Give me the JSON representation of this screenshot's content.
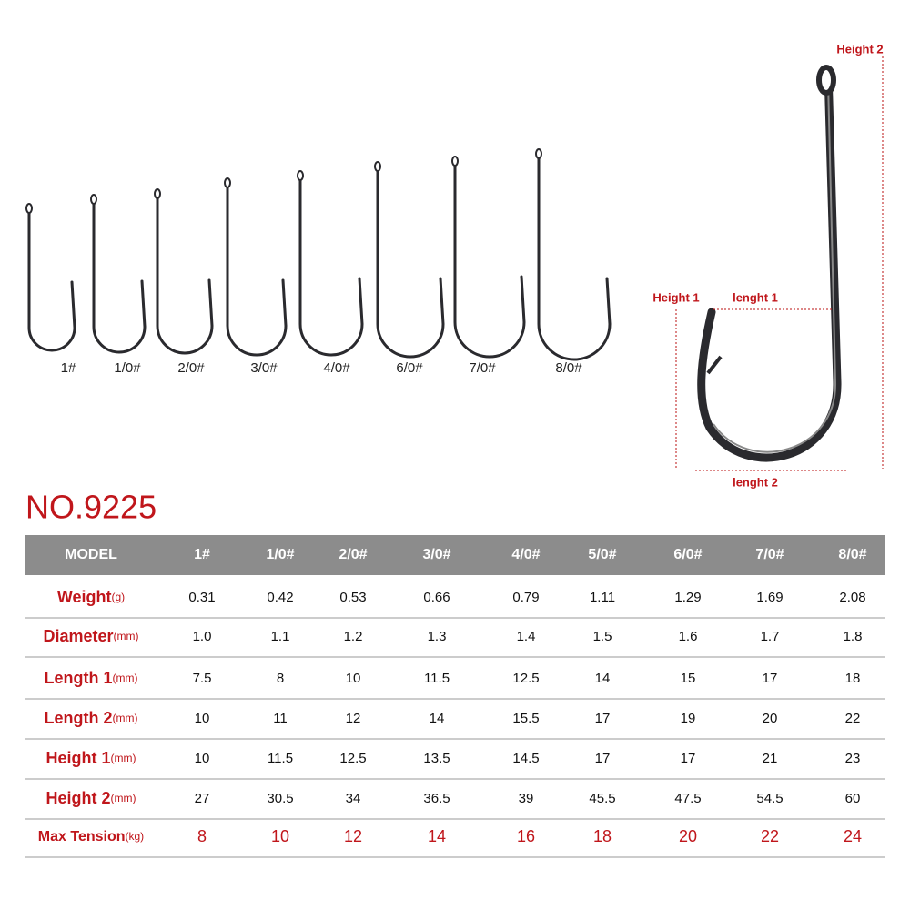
{
  "hooks": [
    "1#",
    "1/0#",
    "2/0#",
    "3/0#",
    "4/0#",
    "6/0#",
    "7/0#",
    "8/0#"
  ],
  "diagram": {
    "height_2": "Height 2",
    "height_1": "Height 1",
    "length_1": "lenght 1",
    "length_2": "lenght 2"
  },
  "title": "NO.9225",
  "table": {
    "header": [
      "MODEL",
      "1#",
      "1/0#",
      "2/0#",
      "3/0#",
      "4/0#",
      "5/0#",
      "6/0#",
      "7/0#",
      "8/0#"
    ],
    "rows": [
      {
        "label": "Weight",
        "unit": "(g)",
        "values": [
          "0.31",
          "0.42",
          "0.53",
          "0.66",
          "0.79",
          "1.11",
          "1.29",
          "1.69",
          "2.08"
        ]
      },
      {
        "label": "Diameter",
        "unit": "(mm)",
        "values": [
          "1.0",
          "1.1",
          "1.2",
          "1.3",
          "1.4",
          "1.5",
          "1.6",
          "1.7",
          "1.8"
        ]
      },
      {
        "label": "Length 1",
        "unit": "(mm)",
        "values": [
          "7.5",
          "8",
          "10",
          "11.5",
          "12.5",
          "14",
          "15",
          "17",
          "18"
        ]
      },
      {
        "label": "Length 2",
        "unit": "(mm)",
        "values": [
          "10",
          "11",
          "12",
          "14",
          "15.5",
          "17",
          "19",
          "20",
          "22"
        ]
      },
      {
        "label": "Height 1",
        "unit": "(mm)",
        "values": [
          "10",
          "11.5",
          "12.5",
          "13.5",
          "14.5",
          "17",
          "17",
          "21",
          "23"
        ]
      },
      {
        "label": "Height 2",
        "unit": "(mm)",
        "values": [
          "27",
          "30.5",
          "34",
          "36.5",
          "39",
          "45.5",
          "47.5",
          "54.5",
          "60"
        ]
      },
      {
        "label": "Max Tension",
        "unit": "(kg)",
        "values": [
          "8",
          "10",
          "12",
          "14",
          "16",
          "18",
          "20",
          "22",
          "24"
        ]
      }
    ]
  }
}
